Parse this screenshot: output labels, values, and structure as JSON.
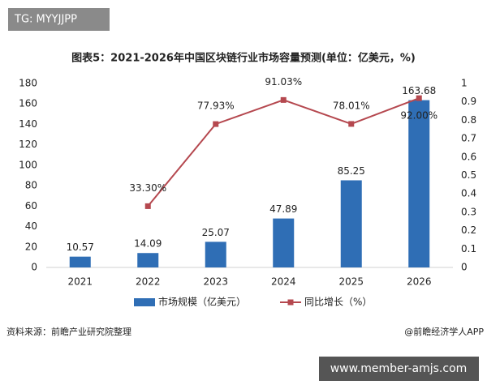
{
  "badge": "TG: MYYJJPP",
  "chart_data": {
    "type": "bar",
    "title": "图表5：2021-2026年中国区块链行业市场容量预测(单位：亿美元，%)",
    "categories": [
      "2021",
      "2022",
      "2023",
      "2024",
      "2025",
      "2026"
    ],
    "series": [
      {
        "name": "市场规模（亿美元）",
        "type": "bar",
        "color": "#2f6eb5",
        "values": [
          10.57,
          14.09,
          25.07,
          47.89,
          85.25,
          163.68
        ]
      },
      {
        "name": "同比增长（%）",
        "type": "line",
        "axis": "y2",
        "color": "#b5484f",
        "values": [
          null,
          0.333,
          0.7793,
          0.9103,
          0.7801,
          0.92
        ],
        "value_labels": [
          null,
          "33.30%",
          "77.93%",
          "91.03%",
          "78.01%",
          "92.00%"
        ]
      }
    ],
    "ylim": [
      0,
      180
    ],
    "yticks": [
      0,
      20,
      40,
      60,
      80,
      100,
      120,
      140,
      160,
      180
    ],
    "y2lim": [
      0,
      1
    ],
    "y2ticks": [
      0,
      0.1,
      0.2,
      0.3,
      0.4,
      0.5,
      0.6,
      0.7,
      0.8,
      0.9,
      1
    ],
    "legend": "bottom",
    "grid": false
  },
  "footer": {
    "source": "资料来源：前瞻产业研究院整理",
    "credit": "@前瞻经济学人APP",
    "website": "www.member-amjs.com"
  }
}
